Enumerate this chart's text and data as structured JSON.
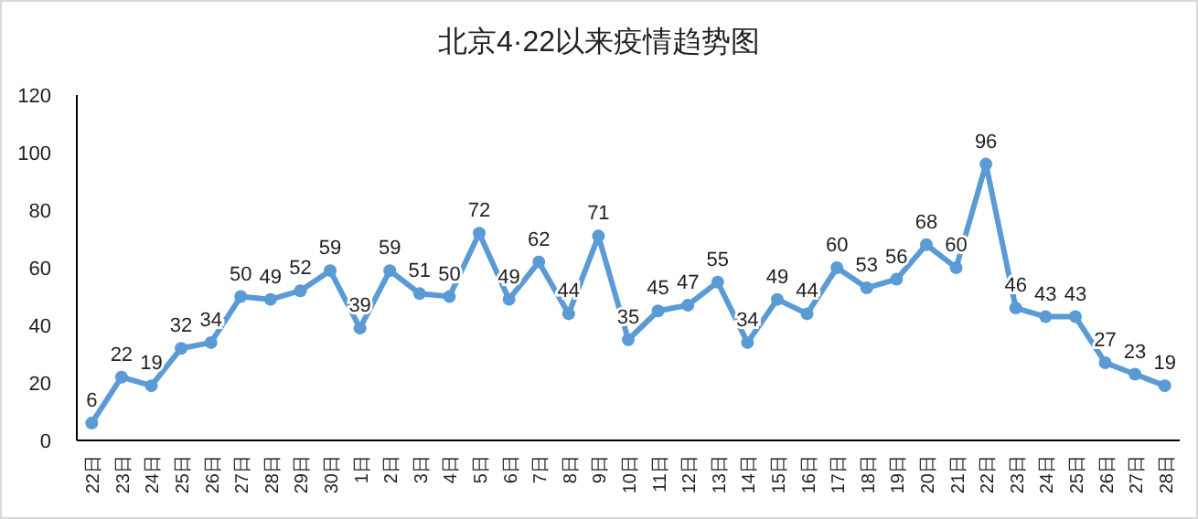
{
  "chart_data": {
    "type": "line",
    "title": "北京4·22以来疫情趋势图",
    "categories": [
      "22日",
      "23日",
      "24日",
      "25日",
      "26日",
      "27日",
      "28日",
      "29日",
      "30日",
      "1日",
      "2日",
      "3日",
      "4日",
      "5日",
      "6日",
      "7日",
      "8日",
      "9日",
      "10日",
      "11日",
      "12日",
      "13日",
      "14日",
      "15日",
      "16日",
      "17日",
      "18日",
      "19日",
      "20日",
      "21日",
      "22日",
      "23日",
      "24日",
      "25日",
      "26日",
      "27日",
      "28日"
    ],
    "series": [
      {
        "color": "#5b9bd5",
        "values": [
          6,
          22,
          19,
          32,
          34,
          50,
          49,
          52,
          59,
          39,
          59,
          51,
          50,
          72,
          49,
          62,
          44,
          71,
          35,
          45,
          47,
          55,
          34,
          49,
          44,
          60,
          53,
          56,
          68,
          60,
          96,
          46,
          43,
          43,
          27,
          23,
          19
        ]
      }
    ],
    "ylim": [
      0,
      120
    ],
    "yticks": [
      0,
      20,
      40,
      60,
      80,
      100,
      120
    ],
    "grid": false,
    "marker": "circle",
    "line_style": "solid",
    "data_labels": true
  }
}
